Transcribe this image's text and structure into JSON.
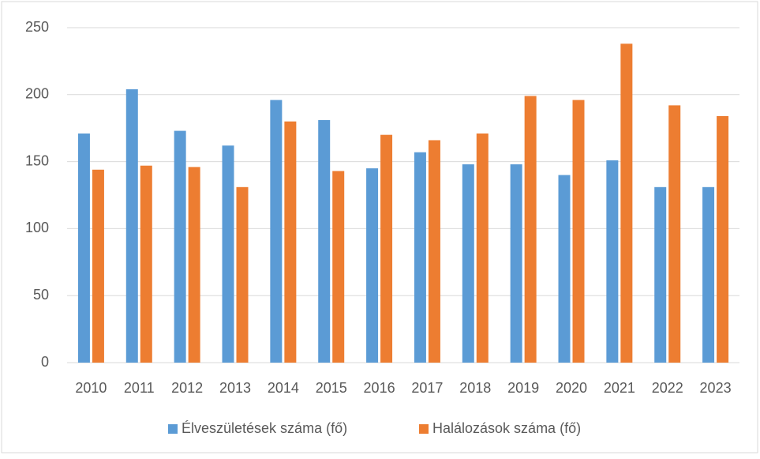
{
  "chart_data": {
    "type": "bar",
    "categories": [
      "2010",
      "2011",
      "2012",
      "2013",
      "2014",
      "2015",
      "2016",
      "2017",
      "2018",
      "2019",
      "2020",
      "2021",
      "2022",
      "2023"
    ],
    "series": [
      {
        "name": "Élveszületések száma (fő)",
        "color": "#5b9bd5",
        "values": [
          171,
          204,
          173,
          162,
          196,
          181,
          145,
          157,
          148,
          148,
          140,
          151,
          131,
          131
        ]
      },
      {
        "name": "Halálozások száma (fő)",
        "color": "#ed7d31",
        "values": [
          144,
          147,
          146,
          131,
          180,
          143,
          170,
          166,
          171,
          199,
          196,
          238,
          192,
          184
        ]
      }
    ],
    "ylim": [
      0,
      250
    ],
    "yticks": [
      0,
      50,
      100,
      150,
      200,
      250
    ],
    "grid": true,
    "legend": "bottom"
  }
}
